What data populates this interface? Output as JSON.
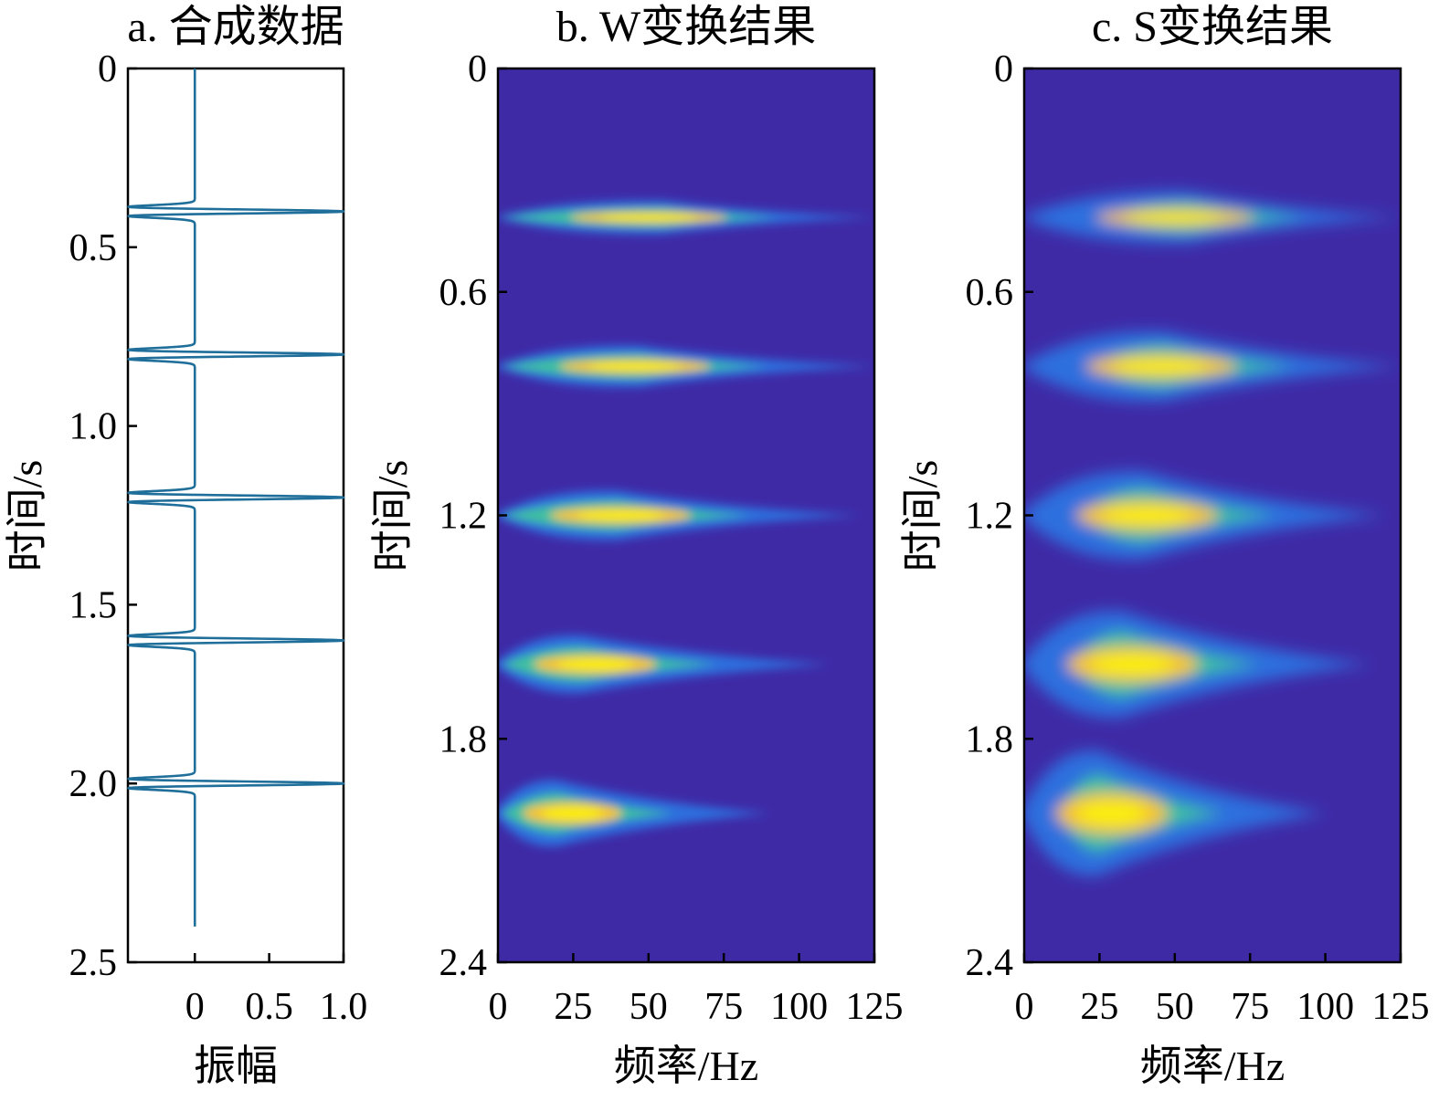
{
  "chart_data": [
    {
      "type": "line",
      "title": "a. 合成数据",
      "xlabel": "振幅",
      "ylabel": "时间/s",
      "xlim": [
        -0.45,
        1.0
      ],
      "ylim": [
        0,
        2.5
      ],
      "y_inverted": true,
      "xticks": [
        "0",
        "0.5",
        "1.0"
      ],
      "yticks": [
        "0",
        "0.5",
        "1.0",
        "1.5",
        "2.0",
        "2.5"
      ],
      "trace_end_time": 2.4,
      "events": [
        {
          "time": 0.4,
          "peak_amplitude": 1.0
        },
        {
          "time": 0.8,
          "peak_amplitude": 1.0
        },
        {
          "time": 1.2,
          "peak_amplitude": 1.0
        },
        {
          "time": 1.6,
          "peak_amplitude": 1.0
        },
        {
          "time": 2.0,
          "peak_amplitude": 1.0
        }
      ],
      "line_color": "#1f6f9a"
    },
    {
      "type": "heatmap",
      "title": "b. W变换结果",
      "xlabel": "频率/Hz",
      "ylabel": "时间/s",
      "xlim": [
        0,
        125
      ],
      "ylim": [
        0,
        2.4
      ],
      "y_inverted": true,
      "xticks": [
        "0",
        "25",
        "50",
        "75",
        "100",
        "125"
      ],
      "yticks": [
        "0",
        "0.6",
        "1.2",
        "1.8",
        "2.4"
      ],
      "colormap": "parula",
      "background": "#3f2aa6",
      "blobs": [
        {
          "time": 0.4,
          "peak_freq": 55,
          "tail_freq": 125,
          "relative_intensity": 1.0
        },
        {
          "time": 0.8,
          "peak_freq": 47,
          "tail_freq": 125,
          "relative_intensity": 1.0
        },
        {
          "time": 1.2,
          "peak_freq": 40,
          "tail_freq": 120,
          "relative_intensity": 1.0
        },
        {
          "time": 1.6,
          "peak_freq": 28,
          "tail_freq": 110,
          "relative_intensity": 1.0
        },
        {
          "time": 2.0,
          "peak_freq": 20,
          "tail_freq": 90,
          "relative_intensity": 1.0
        }
      ]
    },
    {
      "type": "heatmap",
      "title": "c. S变换结果",
      "xlabel": "频率/Hz",
      "ylabel": "时间/s",
      "xlim": [
        0,
        125
      ],
      "ylim": [
        0,
        2.4
      ],
      "y_inverted": true,
      "xticks": [
        "0",
        "25",
        "50",
        "75",
        "100",
        "125"
      ],
      "yticks": [
        "0",
        "0.6",
        "1.2",
        "1.8",
        "2.4"
      ],
      "colormap": "parula",
      "background": "#3f2aa6",
      "blobs": [
        {
          "time": 0.4,
          "peak_freq": 55,
          "tail_freq": 125,
          "relative_intensity": 1.0
        },
        {
          "time": 0.8,
          "peak_freq": 47,
          "tail_freq": 125,
          "relative_intensity": 1.0
        },
        {
          "time": 1.2,
          "peak_freq": 40,
          "tail_freq": 120,
          "relative_intensity": 1.0
        },
        {
          "time": 1.6,
          "peak_freq": 33,
          "tail_freq": 115,
          "relative_intensity": 1.0
        },
        {
          "time": 2.0,
          "peak_freq": 25,
          "tail_freq": 100,
          "relative_intensity": 1.0
        }
      ]
    }
  ]
}
